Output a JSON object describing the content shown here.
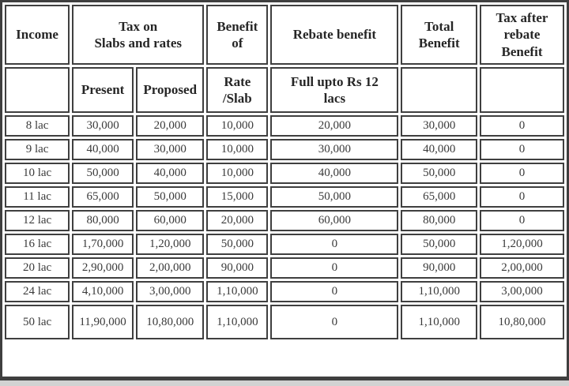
{
  "chart_data": {
    "type": "table",
    "header_row1": {
      "income": "Income",
      "tax_on": "Tax on\nSlabs and rates",
      "benefit_of": "Benefit\nof",
      "rebate": "Rebate benefit",
      "total": "Total\nBenefit",
      "tax_after": "Tax after\nrebate\nBenefit"
    },
    "header_row2": {
      "present": "Present",
      "proposed": "Proposed",
      "rate_slab": "Rate\n/Slab",
      "full_upto": "Full upto Rs 12\nlacs"
    },
    "columns": [
      "Income",
      "Present",
      "Proposed",
      "Rate /Slab",
      "Full upto Rs 12 lacs",
      "Total Benefit",
      "Tax after rebate Benefit"
    ],
    "rows": [
      [
        "8 lac",
        "30,000",
        "20,000",
        "10,000",
        "20,000",
        "30,000",
        "0"
      ],
      [
        "9 lac",
        "40,000",
        "30,000",
        "10,000",
        "30,000",
        "40,000",
        "0"
      ],
      [
        "10 lac",
        "50,000",
        "40,000",
        "10,000",
        "40,000",
        "50,000",
        "0"
      ],
      [
        "11 lac",
        "65,000",
        "50,000",
        "15,000",
        "50,000",
        "65,000",
        "0"
      ],
      [
        "12 lac",
        "80,000",
        "60,000",
        "20,000",
        "60,000",
        "80,000",
        "0"
      ],
      [
        "16 lac",
        "1,70,000",
        "1,20,000",
        "50,000",
        "0",
        "50,000",
        "1,20,000"
      ],
      [
        "20 lac",
        "2,90,000",
        "2,00,000",
        "90,000",
        "0",
        "90,000",
        "2,00,000"
      ],
      [
        "24 lac",
        "4,10,000",
        "3,00,000",
        "1,10,000",
        "0",
        "1,10,000",
        "3,00,000"
      ],
      [
        "50 lac",
        "11,90,000",
        "10,80,000",
        "1,10,000",
        "0",
        "1,10,000",
        "10,80,000"
      ]
    ]
  },
  "colors": {
    "border": "#3f3f3f",
    "header_text": "#262626",
    "data_text": "#3a3a3a",
    "background": "#ffffff",
    "bottom_strip": "#d2d2d2"
  }
}
